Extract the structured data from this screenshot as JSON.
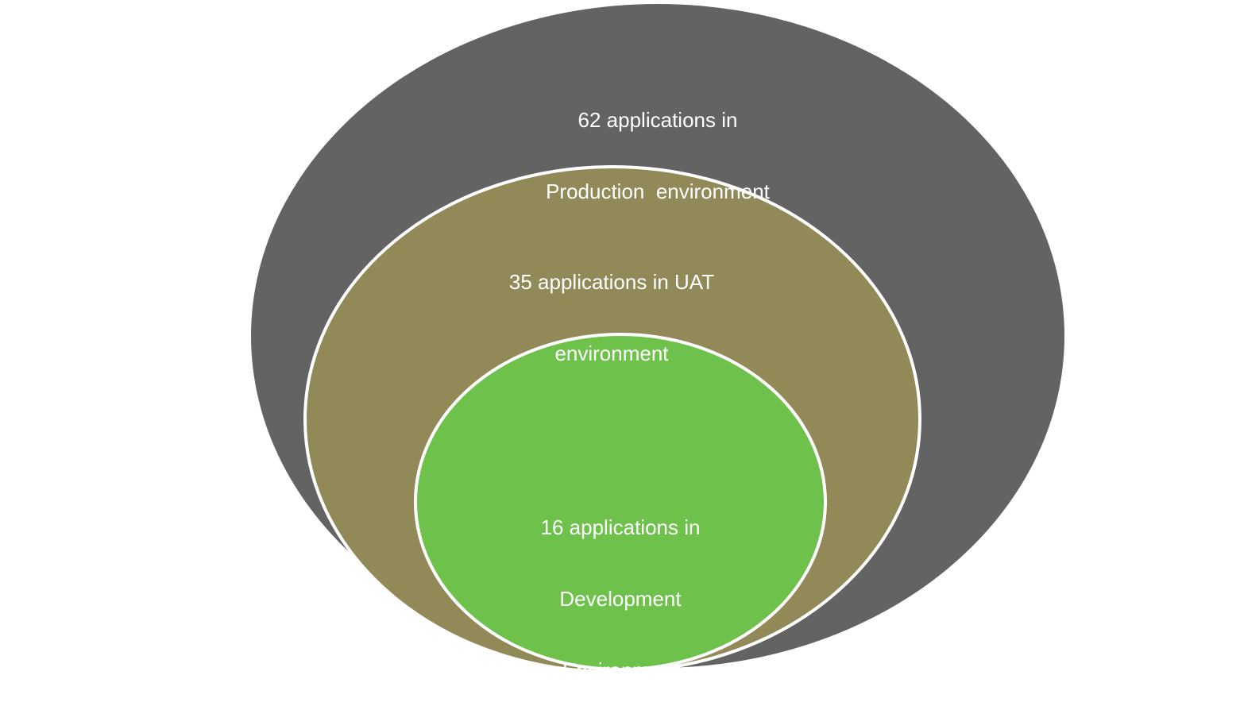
{
  "diagram": {
    "circles": [
      {
        "id": "production",
        "label_line1": "62 applications in",
        "label_line2": "Production  environment",
        "color": "#636363"
      },
      {
        "id": "uat",
        "label_line1": "35 applications in UAT",
        "label_line2": "environment",
        "color": "#928958"
      },
      {
        "id": "development",
        "label_line1": "16 applications in",
        "label_line2": "Development",
        "label_line3": "Environment",
        "color": "#6EC24B"
      }
    ],
    "stroke_color": "#ffffff",
    "background_color": "#ffffff"
  }
}
